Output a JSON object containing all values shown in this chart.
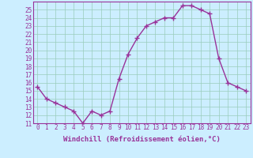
{
  "x": [
    0,
    1,
    2,
    3,
    4,
    5,
    6,
    7,
    8,
    9,
    10,
    11,
    12,
    13,
    14,
    15,
    16,
    17,
    18,
    19,
    20,
    21,
    22,
    23
  ],
  "y": [
    15.5,
    14.0,
    13.5,
    13.0,
    12.5,
    11.0,
    12.5,
    12.0,
    12.5,
    16.5,
    19.5,
    21.5,
    23.0,
    23.5,
    24.0,
    24.0,
    25.5,
    25.5,
    25.0,
    24.5,
    19.0,
    16.0,
    15.5,
    15.0
  ],
  "color": "#993399",
  "bg_color": "#cceeff",
  "grid_color": "#99ccbb",
  "xlabel": "Windchill (Refroidissement éolien,°C)",
  "ylim": [
    11,
    26
  ],
  "xlim": [
    -0.5,
    23.5
  ],
  "yticks": [
    11,
    12,
    13,
    14,
    15,
    16,
    17,
    18,
    19,
    20,
    21,
    22,
    23,
    24,
    25
  ],
  "xticks": [
    0,
    1,
    2,
    3,
    4,
    5,
    6,
    7,
    8,
    9,
    10,
    11,
    12,
    13,
    14,
    15,
    16,
    17,
    18,
    19,
    20,
    21,
    22,
    23
  ],
  "marker": "+",
  "linewidth": 1.0,
  "markersize": 4,
  "xlabel_fontsize": 6.5,
  "tick_fontsize": 5.5
}
